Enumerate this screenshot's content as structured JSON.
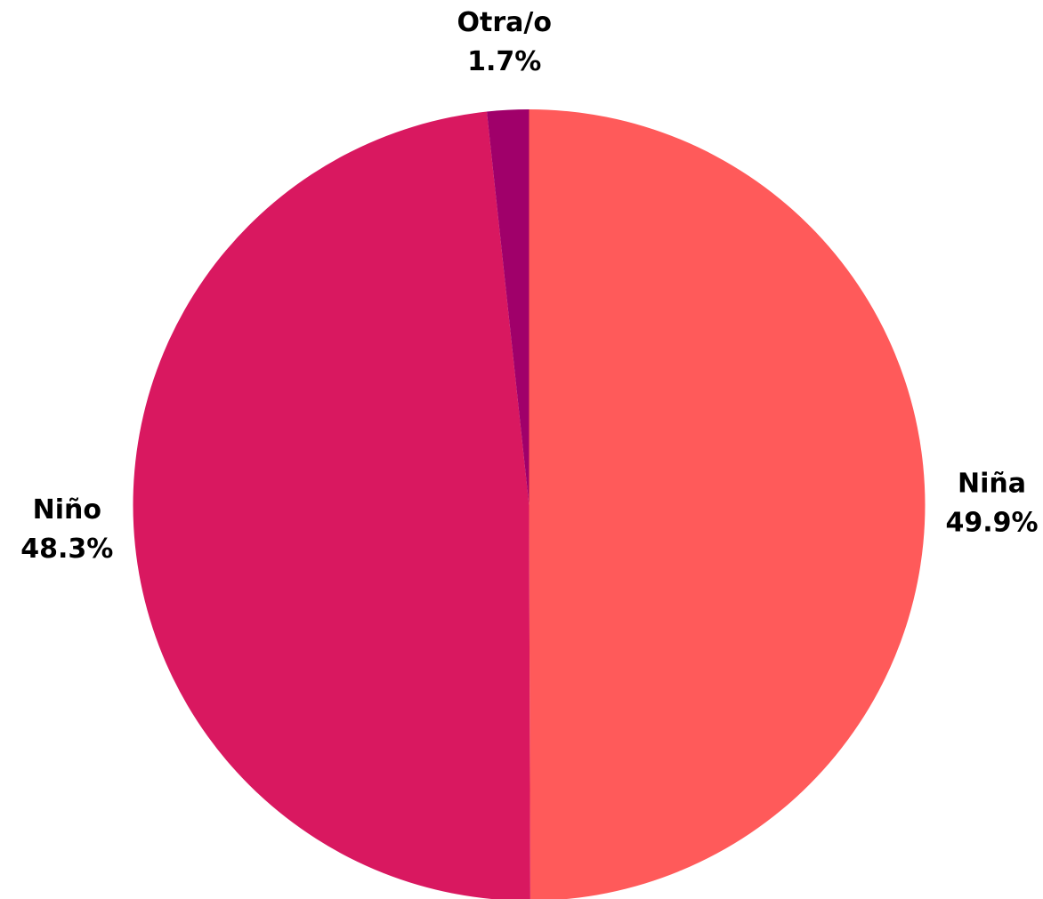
{
  "chart_data": {
    "type": "pie",
    "categories": [
      "Niña",
      "Niño",
      "Otra/o"
    ],
    "values": [
      49.9,
      48.3,
      1.7
    ],
    "value_labels": [
      "49.9%",
      "48.3%",
      "1.7%"
    ],
    "colors": [
      "#ff5a5a",
      "#d91860",
      "#a0006a"
    ]
  }
}
